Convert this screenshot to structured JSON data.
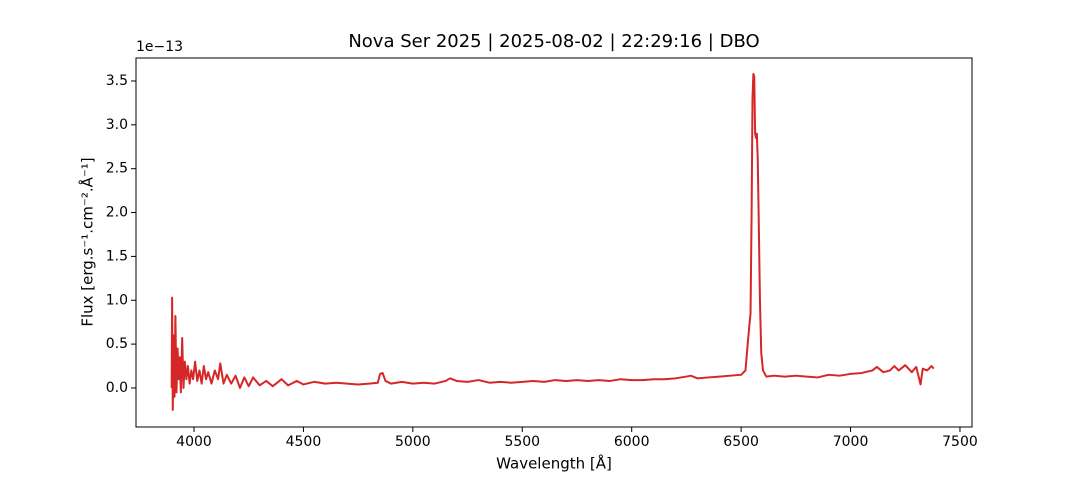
{
  "chart_data": {
    "type": "line",
    "title": "Nova Ser 2025 | 2025-08-02 | 22:29:16 | DBO",
    "x_label": "Wavelength [Å]",
    "y_label": "Flux [erg.s⁻¹.cm⁻².Å⁻¹]",
    "y_offset_label": "1e−13",
    "xlim": [
      3735,
      7555
    ],
    "ylim": [
      -0.445,
      3.762
    ],
    "xticks": [
      4000,
      4500,
      5000,
      5500,
      6000,
      6500,
      7000,
      7500
    ],
    "yticks": [
      {
        "value": 0,
        "label": "0.0"
      },
      0.5,
      {
        "value": 1,
        "label": "1.0"
      },
      1.5,
      {
        "value": 2,
        "label": "2.0"
      },
      2.5,
      {
        "value": 3,
        "label": "3.0"
      },
      3.5
    ],
    "grid": false,
    "x": [
      3898,
      3900,
      3903,
      3907,
      3911,
      3915,
      3920,
      3925,
      3930,
      3935,
      3940,
      3946,
      3952,
      3958,
      3965,
      3972,
      3980,
      3988,
      3996,
      4005,
      4015,
      4025,
      4035,
      4045,
      4055,
      4065,
      4080,
      4095,
      4110,
      4120,
      4135,
      4150,
      4170,
      4190,
      4210,
      4230,
      4250,
      4270,
      4300,
      4330,
      4360,
      4400,
      4430,
      4470,
      4500,
      4550,
      4600,
      4650,
      4700,
      4750,
      4800,
      4840,
      4850,
      4862,
      4875,
      4900,
      4950,
      5000,
      5050,
      5100,
      5150,
      5170,
      5200,
      5250,
      5300,
      5350,
      5400,
      5450,
      5500,
      5550,
      5600,
      5650,
      5700,
      5750,
      5800,
      5850,
      5900,
      5950,
      6000,
      6050,
      6100,
      6150,
      6200,
      6250,
      6270,
      6300,
      6350,
      6400,
      6450,
      6500,
      6520,
      6530,
      6538,
      6543,
      6548,
      6552,
      6556,
      6560,
      6564,
      6568,
      6572,
      6576,
      6580,
      6586,
      6592,
      6600,
      6615,
      6650,
      6700,
      6750,
      6800,
      6850,
      6900,
      6950,
      7000,
      7050,
      7100,
      7120,
      7150,
      7180,
      7200,
      7220,
      7250,
      7280,
      7300,
      7320,
      7330,
      7350,
      7370,
      7380
    ],
    "series": [
      {
        "name": "Nova Ser 2025",
        "color": "#d62728",
        "values": [
          0.0,
          1.03,
          -0.25,
          0.6,
          -0.1,
          0.82,
          -0.05,
          0.45,
          0.1,
          0.35,
          -0.05,
          0.57,
          0.0,
          0.3,
          0.1,
          0.25,
          0.05,
          0.2,
          0.1,
          0.3,
          0.08,
          0.2,
          0.05,
          0.25,
          0.1,
          0.18,
          0.05,
          0.2,
          0.1,
          0.28,
          0.05,
          0.15,
          0.05,
          0.14,
          0.0,
          0.12,
          0.02,
          0.12,
          0.03,
          0.08,
          0.02,
          0.1,
          0.03,
          0.08,
          0.04,
          0.07,
          0.05,
          0.06,
          0.05,
          0.04,
          0.05,
          0.06,
          0.16,
          0.17,
          0.08,
          0.05,
          0.07,
          0.05,
          0.06,
          0.05,
          0.08,
          0.11,
          0.08,
          0.07,
          0.09,
          0.06,
          0.07,
          0.06,
          0.07,
          0.08,
          0.07,
          0.09,
          0.08,
          0.09,
          0.08,
          0.09,
          0.08,
          0.1,
          0.09,
          0.09,
          0.1,
          0.1,
          0.11,
          0.13,
          0.14,
          0.11,
          0.12,
          0.13,
          0.14,
          0.15,
          0.2,
          0.5,
          0.72,
          0.85,
          2.0,
          3.3,
          3.58,
          3.55,
          2.9,
          2.85,
          2.9,
          2.6,
          2.0,
          1.0,
          0.4,
          0.2,
          0.13,
          0.14,
          0.13,
          0.14,
          0.13,
          0.12,
          0.15,
          0.14,
          0.16,
          0.17,
          0.2,
          0.24,
          0.18,
          0.2,
          0.25,
          0.2,
          0.26,
          0.18,
          0.24,
          0.04,
          0.22,
          0.2,
          0.25,
          0.22
        ]
      }
    ]
  }
}
